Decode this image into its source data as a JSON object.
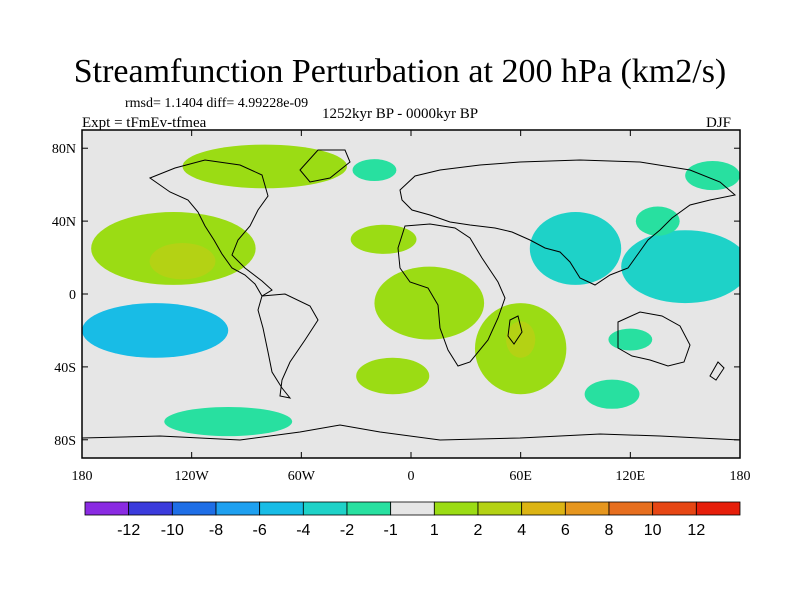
{
  "chart_data": {
    "type": "contour-map",
    "title": "Streamfunction Perturbation at 200 hPa (km2/s)",
    "stats": "rmsd= 1.1404 diff= 4.99228e-09",
    "experiment": "Expt = tFmEv-tfmea",
    "period": "1252kyr BP - 0000kyr BP",
    "season": "DJF",
    "lon_range": [
      -180,
      180
    ],
    "lat_range": [
      -90,
      90
    ],
    "x_ticks": [
      {
        "value": -180,
        "label": "180"
      },
      {
        "value": -120,
        "label": "120W"
      },
      {
        "value": -60,
        "label": "60W"
      },
      {
        "value": 0,
        "label": "0"
      },
      {
        "value": 60,
        "label": "60E"
      },
      {
        "value": 120,
        "label": "120E"
      },
      {
        "value": 180,
        "label": "180"
      }
    ],
    "y_ticks": [
      {
        "value": 80,
        "label": "80N"
      },
      {
        "value": 40,
        "label": "40N"
      },
      {
        "value": 0,
        "label": "0"
      },
      {
        "value": -40,
        "label": "40S"
      },
      {
        "value": -80,
        "label": "80S"
      }
    ],
    "colorbar": {
      "labels": [
        "-12",
        "-10",
        "-8",
        "-6",
        "-4",
        "-2",
        "-1",
        "1",
        "2",
        "4",
        "6",
        "8",
        "10",
        "12"
      ],
      "colors": [
        "#8a2be2",
        "#3b3bdc",
        "#1e6ee6",
        "#1ea0f0",
        "#18bce6",
        "#1ed2c8",
        "#28e0a0",
        "#e6e6e6",
        "#9bdc14",
        "#b4d214",
        "#dcb414",
        "#e6961e",
        "#e66e1e",
        "#e64614",
        "#e61e0a"
      ]
    },
    "features": [
      {
        "name": "arctic-canada-positive",
        "level": 1,
        "color": "#9bdc14",
        "center": [
          -80,
          70
        ],
        "radius": [
          45,
          12
        ]
      },
      {
        "name": "greenland-negative",
        "level": -1,
        "color": "#28e0a0",
        "center": [
          -20,
          68
        ],
        "radius": [
          12,
          6
        ]
      },
      {
        "name": "pacific-north-positive",
        "level": 2,
        "color": "#9bdc14",
        "center": [
          -130,
          25
        ],
        "radius": [
          45,
          20
        ]
      },
      {
        "name": "pacific-north-core",
        "level": 4,
        "color": "#b4d214",
        "center": [
          -125,
          18
        ],
        "radius": [
          18,
          10
        ]
      },
      {
        "name": "atlantic-positive",
        "level": 1,
        "color": "#9bdc14",
        "center": [
          -15,
          30
        ],
        "radius": [
          18,
          8
        ]
      },
      {
        "name": "africa-positive",
        "level": 2,
        "color": "#9bdc14",
        "center": [
          10,
          -5
        ],
        "radius": [
          30,
          20
        ]
      },
      {
        "name": "south-atlantic-positive",
        "level": 1,
        "color": "#9bdc14",
        "center": [
          -10,
          -45
        ],
        "radius": [
          20,
          10
        ]
      },
      {
        "name": "indian-ocean-positive",
        "level": 2,
        "color": "#9bdc14",
        "center": [
          60,
          -30
        ],
        "radius": [
          25,
          25
        ]
      },
      {
        "name": "indian-ocean-core",
        "level": 4,
        "color": "#b4d214",
        "center": [
          60,
          -25
        ],
        "radius": [
          8,
          10
        ]
      },
      {
        "name": "south-pacific-negative",
        "level": -4,
        "color": "#18bce6",
        "center": [
          -140,
          -20
        ],
        "radius": [
          40,
          15
        ]
      },
      {
        "name": "west-pacific-negative",
        "level": -2,
        "color": "#1ed2c8",
        "center": [
          150,
          15
        ],
        "radius": [
          35,
          20
        ]
      },
      {
        "name": "asia-negative",
        "level": -2,
        "color": "#1ed2c8",
        "center": [
          90,
          25
        ],
        "radius": [
          25,
          20
        ]
      },
      {
        "name": "japan-negative",
        "level": -1,
        "color": "#28e0a0",
        "center": [
          135,
          40
        ],
        "radius": [
          12,
          8
        ]
      },
      {
        "name": "bering-negative",
        "level": -1,
        "color": "#28e0a0",
        "center": [
          165,
          65
        ],
        "radius": [
          15,
          8
        ]
      },
      {
        "name": "southern-ocean-negative",
        "level": -1,
        "color": "#28e0a0",
        "center": [
          -100,
          -70
        ],
        "radius": [
          35,
          8
        ]
      },
      {
        "name": "south-pacific-south-negative",
        "level": -1,
        "color": "#28e0a0",
        "center": [
          110,
          -55
        ],
        "radius": [
          15,
          8
        ]
      },
      {
        "name": "australia-east-negative",
        "level": -1,
        "color": "#28e0a0",
        "center": [
          120,
          -25
        ],
        "radius": [
          12,
          6
        ]
      }
    ]
  }
}
